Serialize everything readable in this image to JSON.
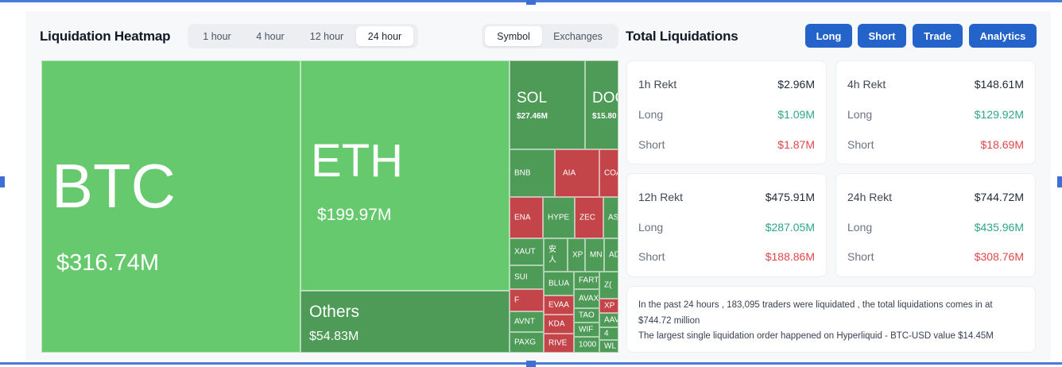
{
  "heatmap": {
    "title": "Liquidation Heatmap",
    "time_tabs": [
      {
        "label": "1 hour",
        "active": false
      },
      {
        "label": "4 hour",
        "active": false
      },
      {
        "label": "12 hour",
        "active": false
      },
      {
        "label": "24 hour",
        "active": true
      }
    ],
    "mode_tabs": [
      {
        "label": "Symbol",
        "active": true
      },
      {
        "label": "Exchanges",
        "active": false
      }
    ],
    "tiles": {
      "btc": {
        "name": "BTC",
        "value": "$316.74M"
      },
      "eth": {
        "name": "ETH",
        "value": "$199.97M"
      },
      "others": {
        "name": "Others",
        "value": "$54.83M"
      },
      "sol": {
        "name": "SOL",
        "value": "$27.46M"
      },
      "doge": {
        "name": "DOG",
        "value": "$15.80"
      },
      "bnb": "BNB",
      "aia": "AIA",
      "coai": "COA",
      "ena": "ENA",
      "hype": "HYPE",
      "zec": "ZEC",
      "as": "AS",
      "xaut": "XAUT",
      "ren": "安人",
      "xp": "XP",
      "mn": "MN",
      "ad": "AD",
      "sui": "SUI",
      "blue": "BLUA",
      "fart": "FART",
      "z": "Z(",
      "f": "F",
      "eva": "EVAA",
      "avax": "AVAX",
      "xp2": "XP",
      "tao": "TAO",
      "aav": "AAV",
      "avnt": "AVNT",
      "kda": "KDA",
      "wif": "WIF",
      "four": "4",
      "paxg": "PAXG",
      "rive": "RIVE",
      "k1000": "1000",
      "wl": "WL"
    }
  },
  "totals": {
    "title": "Total Liquidations",
    "buttons": [
      "Long",
      "Short",
      "Trade",
      "Analytics"
    ],
    "cards": [
      {
        "title": "1h Rekt",
        "total": "$2.96M",
        "long_label": "Long",
        "long": "$1.09M",
        "short_label": "Short",
        "short": "$1.87M"
      },
      {
        "title": "4h Rekt",
        "total": "$148.61M",
        "long_label": "Long",
        "long": "$129.92M",
        "short_label": "Short",
        "short": "$18.69M"
      },
      {
        "title": "12h Rekt",
        "total": "$475.91M",
        "long_label": "Long",
        "long": "$287.05M",
        "short_label": "Short",
        "short": "$188.86M"
      },
      {
        "title": "24h Rekt",
        "total": "$744.72M",
        "long_label": "Long",
        "long": "$435.96M",
        "short_label": "Short",
        "short": "$308.76M"
      }
    ],
    "summary_line1": "In the past 24 hours , 183,095 traders were liquidated , the total liquidations comes in at $744.72 million",
    "summary_line2": "The largest single liquidation order happened on Hyperliquid - BTC-USD value $14.45M"
  },
  "colors": {
    "long_green": "#2ea58a",
    "short_red": "#e0464b",
    "tile_green": "#66c96d",
    "tile_red": "#c44549",
    "button_blue": "#2463c9"
  }
}
